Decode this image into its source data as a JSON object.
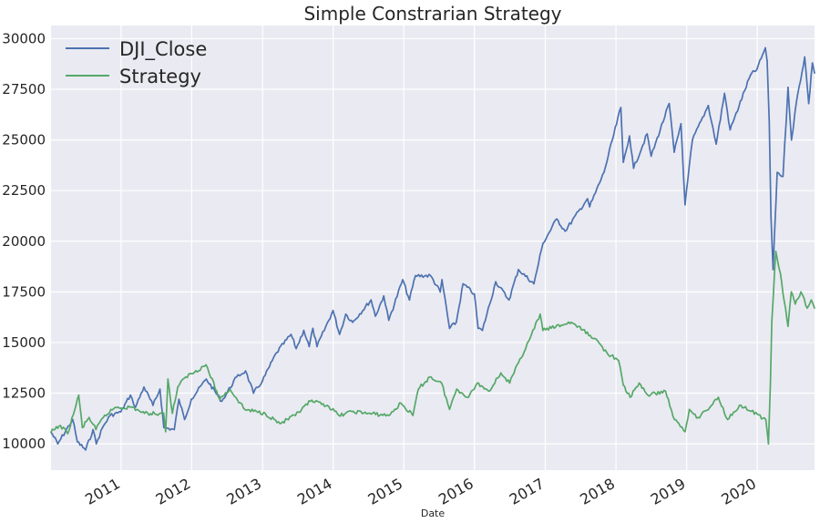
{
  "chart_data": {
    "type": "line",
    "title": "Simple Constrarian Strategy",
    "xlabel": "Date",
    "ylabel": "",
    "xlim": [
      "2010-01-04",
      "2020-10-23"
    ],
    "ylim": [
      8700,
      30650
    ],
    "y_ticks": [
      10000,
      12500,
      15000,
      17500,
      20000,
      22500,
      25000,
      27500,
      30000
    ],
    "x_ticks": [
      "2011",
      "2012",
      "2013",
      "2014",
      "2015",
      "2016",
      "2017",
      "2018",
      "2019",
      "2020"
    ],
    "x_tick_dates": [
      "2011-01-01",
      "2012-01-01",
      "2013-01-01",
      "2014-01-01",
      "2015-01-01",
      "2016-01-01",
      "2017-01-01",
      "2018-01-01",
      "2019-01-01",
      "2020-01-01"
    ],
    "grid": true,
    "legend_position": "top-left",
    "series": [
      {
        "name": "DJI_Close",
        "color": "#4c72b0",
        "points": [
          [
            "2010-01-04",
            10580
          ],
          [
            "2010-02-08",
            10000
          ],
          [
            "2010-04-26",
            11200
          ],
          [
            "2010-05-20",
            10100
          ],
          [
            "2010-07-02",
            9700
          ],
          [
            "2010-08-09",
            10700
          ],
          [
            "2010-08-26",
            10000
          ],
          [
            "2010-09-27",
            10800
          ],
          [
            "2010-11-05",
            11400
          ],
          [
            "2010-12-31",
            11580
          ],
          [
            "2011-02-18",
            12400
          ],
          [
            "2011-03-16",
            11800
          ],
          [
            "2011-04-29",
            12800
          ],
          [
            "2011-06-15",
            11900
          ],
          [
            "2011-07-21",
            12700
          ],
          [
            "2011-08-10",
            10800
          ],
          [
            "2011-10-03",
            10700
          ],
          [
            "2011-10-27",
            12200
          ],
          [
            "2011-11-25",
            11200
          ],
          [
            "2011-12-30",
            12200
          ],
          [
            "2012-03-16",
            13200
          ],
          [
            "2012-06-04",
            12100
          ],
          [
            "2012-08-20",
            13300
          ],
          [
            "2012-10-05",
            13600
          ],
          [
            "2012-11-15",
            12500
          ],
          [
            "2012-12-31",
            13100
          ],
          [
            "2013-03-14",
            14500
          ],
          [
            "2013-05-28",
            15400
          ],
          [
            "2013-06-24",
            14700
          ],
          [
            "2013-08-02",
            15600
          ],
          [
            "2013-08-30",
            14800
          ],
          [
            "2013-09-18",
            15700
          ],
          [
            "2013-10-09",
            14800
          ],
          [
            "2013-12-31",
            16580
          ],
          [
            "2014-02-03",
            15400
          ],
          [
            "2014-03-07",
            16400
          ],
          [
            "2014-04-11",
            16000
          ],
          [
            "2014-07-16",
            17100
          ],
          [
            "2014-08-07",
            16300
          ],
          [
            "2014-09-19",
            17300
          ],
          [
            "2014-10-15",
            16100
          ],
          [
            "2014-12-26",
            18100
          ],
          [
            "2015-01-30",
            17100
          ],
          [
            "2015-03-02",
            18300
          ],
          [
            "2015-05-19",
            18300
          ],
          [
            "2015-07-08",
            17500
          ],
          [
            "2015-07-17",
            18100
          ],
          [
            "2015-08-25",
            15700
          ],
          [
            "2015-09-29",
            16000
          ],
          [
            "2015-11-03",
            17900
          ],
          [
            "2015-12-31",
            17400
          ],
          [
            "2016-01-20",
            15700
          ],
          [
            "2016-02-11",
            15600
          ],
          [
            "2016-04-20",
            18000
          ],
          [
            "2016-06-27",
            17100
          ],
          [
            "2016-08-15",
            18600
          ],
          [
            "2016-11-03",
            17900
          ],
          [
            "2016-12-20",
            19900
          ],
          [
            "2017-03-01",
            21100
          ],
          [
            "2017-04-13",
            20500
          ],
          [
            "2017-08-07",
            22100
          ],
          [
            "2017-08-18",
            21700
          ],
          [
            "2017-10-31",
            23400
          ],
          [
            "2018-01-26",
            26600
          ],
          [
            "2018-02-08",
            23900
          ],
          [
            "2018-03-12",
            25200
          ],
          [
            "2018-04-02",
            23600
          ],
          [
            "2018-06-11",
            25300
          ],
          [
            "2018-07-02",
            24200
          ],
          [
            "2018-10-03",
            26800
          ],
          [
            "2018-10-29",
            24400
          ],
          [
            "2018-12-03",
            25800
          ],
          [
            "2018-12-24",
            21800
          ],
          [
            "2019-01-31",
            25000
          ],
          [
            "2019-04-23",
            26700
          ],
          [
            "2019-06-03",
            24800
          ],
          [
            "2019-07-16",
            27300
          ],
          [
            "2019-08-14",
            25500
          ],
          [
            "2019-11-27",
            28200
          ],
          [
            "2019-12-31",
            28500
          ],
          [
            "2020-02-12",
            29550
          ],
          [
            "2020-02-21",
            28900
          ],
          [
            "2020-03-03",
            25900
          ],
          [
            "2020-03-12",
            21200
          ],
          [
            "2020-03-23",
            18600
          ],
          [
            "2020-04-13",
            23400
          ],
          [
            "2020-05-13",
            23200
          ],
          [
            "2020-06-08",
            27600
          ],
          [
            "2020-06-26",
            25000
          ],
          [
            "2020-07-22",
            26900
          ],
          [
            "2020-09-02",
            29100
          ],
          [
            "2020-09-23",
            26800
          ],
          [
            "2020-10-12",
            28800
          ],
          [
            "2020-10-23",
            28300
          ]
        ]
      },
      {
        "name": "Strategy",
        "color": "#55a868",
        "points": [
          [
            "2010-01-04",
            10580
          ],
          [
            "2010-02-22",
            10900
          ],
          [
            "2010-03-31",
            10500
          ],
          [
            "2010-05-13",
            11900
          ],
          [
            "2010-05-27",
            12400
          ],
          [
            "2010-06-15",
            10800
          ],
          [
            "2010-07-20",
            11300
          ],
          [
            "2010-08-24",
            10700
          ],
          [
            "2010-10-01",
            11300
          ],
          [
            "2010-12-01",
            11800
          ],
          [
            "2011-03-01",
            11800
          ],
          [
            "2011-05-02",
            11500
          ],
          [
            "2011-08-09",
            11500
          ],
          [
            "2011-08-19",
            10600
          ],
          [
            "2011-08-31",
            13200
          ],
          [
            "2011-09-23",
            11500
          ],
          [
            "2011-10-21",
            12800
          ],
          [
            "2011-12-01",
            13300
          ],
          [
            "2012-03-15",
            13900
          ],
          [
            "2012-05-25",
            12200
          ],
          [
            "2012-07-16",
            12700
          ],
          [
            "2012-10-01",
            11700
          ],
          [
            "2013-01-15",
            11500
          ],
          [
            "2013-04-01",
            11000
          ],
          [
            "2013-06-20",
            11400
          ],
          [
            "2013-09-05",
            12100
          ],
          [
            "2013-12-02",
            11900
          ],
          [
            "2014-01-30",
            11400
          ],
          [
            "2014-04-15",
            11600
          ],
          [
            "2014-07-01",
            11500
          ],
          [
            "2014-10-15",
            11400
          ],
          [
            "2014-12-17",
            12000
          ],
          [
            "2015-02-17",
            11400
          ],
          [
            "2015-03-17",
            12700
          ],
          [
            "2015-05-15",
            13300
          ],
          [
            "2015-07-15",
            13000
          ],
          [
            "2015-08-25",
            11700
          ],
          [
            "2015-10-01",
            12700
          ],
          [
            "2015-12-01",
            12300
          ],
          [
            "2016-01-15",
            13000
          ],
          [
            "2016-03-15",
            12600
          ],
          [
            "2016-05-16",
            13500
          ],
          [
            "2016-07-01",
            13000
          ],
          [
            "2016-08-15",
            14000
          ],
          [
            "2016-10-14",
            15200
          ],
          [
            "2016-12-05",
            16400
          ],
          [
            "2016-12-19",
            15600
          ],
          [
            "2017-05-15",
            16000
          ],
          [
            "2017-09-13",
            15200
          ],
          [
            "2017-11-15",
            14500
          ],
          [
            "2018-01-15",
            14100
          ],
          [
            "2018-02-08",
            12900
          ],
          [
            "2018-03-15",
            12300
          ],
          [
            "2018-05-01",
            13000
          ],
          [
            "2018-06-15",
            12400
          ],
          [
            "2018-09-14",
            12600
          ],
          [
            "2018-10-30",
            11200
          ],
          [
            "2018-12-24",
            10600
          ],
          [
            "2019-01-15",
            11700
          ],
          [
            "2019-03-01",
            11300
          ],
          [
            "2019-05-01",
            11800
          ],
          [
            "2019-06-14",
            12300
          ],
          [
            "2019-08-01",
            11200
          ],
          [
            "2019-10-01",
            11900
          ],
          [
            "2019-12-02",
            11600
          ],
          [
            "2020-02-14",
            11200
          ],
          [
            "2020-02-28",
            10000
          ],
          [
            "2020-03-09",
            13000
          ],
          [
            "2020-03-16",
            16000
          ],
          [
            "2020-03-25",
            17500
          ],
          [
            "2020-04-06",
            19500
          ],
          [
            "2020-04-30",
            18400
          ],
          [
            "2020-05-20",
            17000
          ],
          [
            "2020-06-08",
            15800
          ],
          [
            "2020-06-25",
            17500
          ],
          [
            "2020-07-15",
            16900
          ],
          [
            "2020-08-14",
            17500
          ],
          [
            "2020-09-15",
            16700
          ],
          [
            "2020-10-06",
            17100
          ],
          [
            "2020-10-23",
            16700
          ]
        ]
      }
    ]
  }
}
